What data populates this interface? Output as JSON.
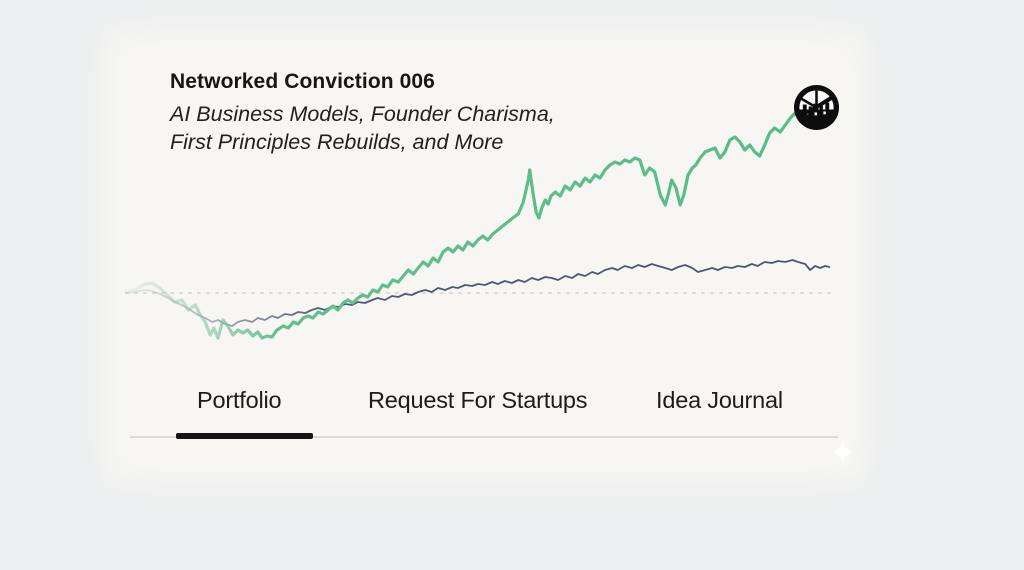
{
  "header": {
    "title": "Networked Conviction 006",
    "subtitle_line1": "AI Business Models, Founder Charisma,",
    "subtitle_line2": "First Principles Rebuilds, and More"
  },
  "tabs": {
    "items": [
      {
        "label": "Portfolio",
        "active": true
      },
      {
        "label": "Request For Startups",
        "active": false
      },
      {
        "label": "Idea Journal",
        "active": false
      }
    ]
  },
  "icons": {
    "logo": "networked-wheel-logo",
    "sparkle": "four-point-sparkle"
  },
  "colors": {
    "green_line": "#5cbd8a",
    "navy_line": "#4d5a77",
    "baseline_dash": "#d5d4cf",
    "active_underline": "#141414",
    "divider": "#dbdad5",
    "text": "#161616",
    "bg_outer": "#edeff0",
    "bg_card": "#f7f6f2"
  },
  "chart_data": {
    "type": "line",
    "title": "",
    "xlabel": "",
    "ylabel": "",
    "axes_visible": false,
    "grid": false,
    "baseline_value": 0,
    "x_range": [
      0,
      100
    ],
    "y_range": [
      -60,
      200
    ],
    "legend": "none",
    "series": [
      {
        "name": "green-line",
        "color": "#5cbd8a",
        "fade_in_start": true,
        "points": [
          [
            0,
            0
          ],
          [
            1.4,
            3
          ],
          [
            2.8,
            9
          ],
          [
            3.8,
            10
          ],
          [
            4.9,
            5
          ],
          [
            6.1,
            -3
          ],
          [
            7,
            -9
          ],
          [
            8,
            -7
          ],
          [
            8.9,
            -17
          ],
          [
            9.9,
            -12
          ],
          [
            10.6,
            -22
          ],
          [
            11.3,
            -29
          ],
          [
            12,
            -42
          ],
          [
            12.5,
            -35
          ],
          [
            13.1,
            -45
          ],
          [
            13.8,
            -27
          ],
          [
            14.5,
            -33
          ],
          [
            15.2,
            -42
          ],
          [
            15.9,
            -37
          ],
          [
            16.6,
            -40
          ],
          [
            17.3,
            -37
          ],
          [
            18,
            -43
          ],
          [
            18.7,
            -39
          ],
          [
            19.3,
            -45
          ],
          [
            20,
            -43
          ],
          [
            20.7,
            -44
          ],
          [
            21.4,
            -37
          ],
          [
            22.3,
            -33
          ],
          [
            23,
            -35
          ],
          [
            23.7,
            -29
          ],
          [
            24.4,
            -31
          ],
          [
            25.1,
            -25
          ],
          [
            25.8,
            -23
          ],
          [
            26.5,
            -25
          ],
          [
            27.2,
            -19
          ],
          [
            27.9,
            -21
          ],
          [
            28.6,
            -17
          ],
          [
            29.3,
            -13
          ],
          [
            30,
            -17
          ],
          [
            30.7,
            -10
          ],
          [
            31.4,
            -7
          ],
          [
            32.1,
            -10
          ],
          [
            32.8,
            -5
          ],
          [
            33.5,
            -2
          ],
          [
            34.2,
            -4
          ],
          [
            34.9,
            3
          ],
          [
            35.6,
            1
          ],
          [
            36.3,
            8
          ],
          [
            37,
            6
          ],
          [
            37.7,
            13
          ],
          [
            38.5,
            11
          ],
          [
            39.2,
            17
          ],
          [
            39.9,
            23
          ],
          [
            40.6,
            19
          ],
          [
            41.3,
            25
          ],
          [
            42,
            31
          ],
          [
            42.7,
            27
          ],
          [
            43.4,
            35
          ],
          [
            44.1,
            31
          ],
          [
            44.8,
            41
          ],
          [
            45.5,
            45
          ],
          [
            46.2,
            41
          ],
          [
            46.9,
            47
          ],
          [
            47.6,
            43
          ],
          [
            48.3,
            51
          ],
          [
            49,
            47
          ],
          [
            49.7,
            53
          ],
          [
            50.4,
            57
          ],
          [
            51.1,
            53
          ],
          [
            51.8,
            59
          ],
          [
            52.5,
            63
          ],
          [
            53.2,
            67
          ],
          [
            53.9,
            71
          ],
          [
            54.6,
            75
          ],
          [
            55.4,
            79
          ],
          [
            56.1,
            91
          ],
          [
            56.8,
            113
          ],
          [
            57,
            123
          ],
          [
            57.5,
            98
          ],
          [
            57.9,
            81
          ],
          [
            58.3,
            75
          ],
          [
            58.7,
            85
          ],
          [
            59.2,
            93
          ],
          [
            59.6,
            89
          ],
          [
            60,
            97
          ],
          [
            60.6,
            101
          ],
          [
            61.3,
            97
          ],
          [
            62,
            107
          ],
          [
            62.7,
            103
          ],
          [
            63.4,
            111
          ],
          [
            64.1,
            107
          ],
          [
            64.8,
            115
          ],
          [
            65.5,
            111
          ],
          [
            66.2,
            118
          ],
          [
            66.9,
            115
          ],
          [
            67.6,
            123
          ],
          [
            68.3,
            128
          ],
          [
            69,
            131
          ],
          [
            69.7,
            129
          ],
          [
            70.4,
            133
          ],
          [
            71.1,
            131
          ],
          [
            71.8,
            135
          ],
          [
            72.5,
            133
          ],
          [
            73.2,
            118
          ],
          [
            73.9,
            125
          ],
          [
            74.6,
            121
          ],
          [
            75.4,
            98
          ],
          [
            76.1,
            88
          ],
          [
            76.5,
            98
          ],
          [
            77,
            113
          ],
          [
            77.6,
            105
          ],
          [
            78.2,
            88
          ],
          [
            78.7,
            98
          ],
          [
            79.3,
            118
          ],
          [
            79.9,
            125
          ],
          [
            80.4,
            128
          ],
          [
            81,
            135
          ],
          [
            81.7,
            141
          ],
          [
            82.4,
            143
          ],
          [
            83.1,
            145
          ],
          [
            83.8,
            135
          ],
          [
            84.5,
            141
          ],
          [
            85.2,
            153
          ],
          [
            85.9,
            156
          ],
          [
            86.6,
            151
          ],
          [
            87.3,
            143
          ],
          [
            88,
            148
          ],
          [
            88.7,
            141
          ],
          [
            89.4,
            137
          ],
          [
            90.1,
            148
          ],
          [
            90.8,
            160
          ],
          [
            91.5,
            165
          ],
          [
            92.3,
            161
          ],
          [
            93,
            168
          ],
          [
            93.7,
            175
          ],
          [
            94.4,
            180
          ],
          [
            95.1,
            175
          ],
          [
            95.8,
            178
          ],
          [
            96.5,
            181
          ]
        ]
      },
      {
        "name": "navy-line",
        "color": "#4d5a77",
        "fade_in_start": true,
        "points": [
          [
            0,
            0
          ],
          [
            1.4,
            1
          ],
          [
            2.8,
            3
          ],
          [
            3.8,
            2
          ],
          [
            4.9,
            -1
          ],
          [
            6.1,
            -5
          ],
          [
            7,
            -9
          ],
          [
            8,
            -12
          ],
          [
            9.2,
            -17
          ],
          [
            10.3,
            -22
          ],
          [
            11.3,
            -25
          ],
          [
            12.3,
            -29
          ],
          [
            13.1,
            -27
          ],
          [
            14.1,
            -31
          ],
          [
            15.1,
            -33
          ],
          [
            15.9,
            -29
          ],
          [
            16.9,
            -27
          ],
          [
            17.9,
            -29
          ],
          [
            18.7,
            -25
          ],
          [
            19.7,
            -27
          ],
          [
            20.7,
            -23
          ],
          [
            21.5,
            -25
          ],
          [
            22.5,
            -21
          ],
          [
            23.5,
            -22
          ],
          [
            24.4,
            -19
          ],
          [
            25.4,
            -20
          ],
          [
            26.3,
            -17
          ],
          [
            27.2,
            -15
          ],
          [
            28.2,
            -17
          ],
          [
            29.2,
            -13
          ],
          [
            30,
            -14
          ],
          [
            31,
            -11
          ],
          [
            32,
            -12
          ],
          [
            32.8,
            -9
          ],
          [
            33.8,
            -10
          ],
          [
            34.8,
            -7
          ],
          [
            35.6,
            -5
          ],
          [
            36.6,
            -7
          ],
          [
            37.6,
            -3
          ],
          [
            38.5,
            -4
          ],
          [
            39.4,
            -1
          ],
          [
            40.4,
            -2
          ],
          [
            41.3,
            1
          ],
          [
            42.3,
            3
          ],
          [
            43.2,
            1
          ],
          [
            44.1,
            5
          ],
          [
            45.1,
            3
          ],
          [
            46.1,
            6
          ],
          [
            46.9,
            5
          ],
          [
            47.9,
            8
          ],
          [
            48.9,
            7
          ],
          [
            49.7,
            9
          ],
          [
            50.7,
            8
          ],
          [
            51.7,
            11
          ],
          [
            52.5,
            9
          ],
          [
            53.5,
            12
          ],
          [
            54.5,
            10
          ],
          [
            55.4,
            13
          ],
          [
            56.3,
            11
          ],
          [
            57.3,
            15
          ],
          [
            58.2,
            13
          ],
          [
            59.2,
            16
          ],
          [
            60.1,
            15
          ],
          [
            61,
            13
          ],
          [
            62,
            17
          ],
          [
            63,
            15
          ],
          [
            63.8,
            19
          ],
          [
            64.8,
            17
          ],
          [
            65.8,
            21
          ],
          [
            66.6,
            19
          ],
          [
            67.6,
            23
          ],
          [
            68.6,
            25
          ],
          [
            69.4,
            23
          ],
          [
            70.4,
            27
          ],
          [
            71.4,
            25
          ],
          [
            72.3,
            28
          ],
          [
            73.2,
            26
          ],
          [
            74.2,
            29
          ],
          [
            75.1,
            27
          ],
          [
            76.1,
            25
          ],
          [
            77,
            23
          ],
          [
            77.9,
            26
          ],
          [
            78.9,
            28
          ],
          [
            79.9,
            25
          ],
          [
            80.7,
            21
          ],
          [
            81.7,
            23
          ],
          [
            82.7,
            25
          ],
          [
            83.5,
            23
          ],
          [
            84.5,
            26
          ],
          [
            85.5,
            25
          ],
          [
            86.3,
            27
          ],
          [
            87.3,
            26
          ],
          [
            88.3,
            29
          ],
          [
            89.1,
            27
          ],
          [
            90.1,
            31
          ],
          [
            91.1,
            30
          ],
          [
            92,
            32
          ],
          [
            93,
            31
          ],
          [
            94,
            33
          ],
          [
            94.8,
            31
          ],
          [
            95.8,
            29
          ],
          [
            96.5,
            23
          ],
          [
            97.2,
            27
          ],
          [
            97.9,
            25
          ],
          [
            98.6,
            27
          ],
          [
            99.2,
            26
          ]
        ]
      }
    ]
  }
}
